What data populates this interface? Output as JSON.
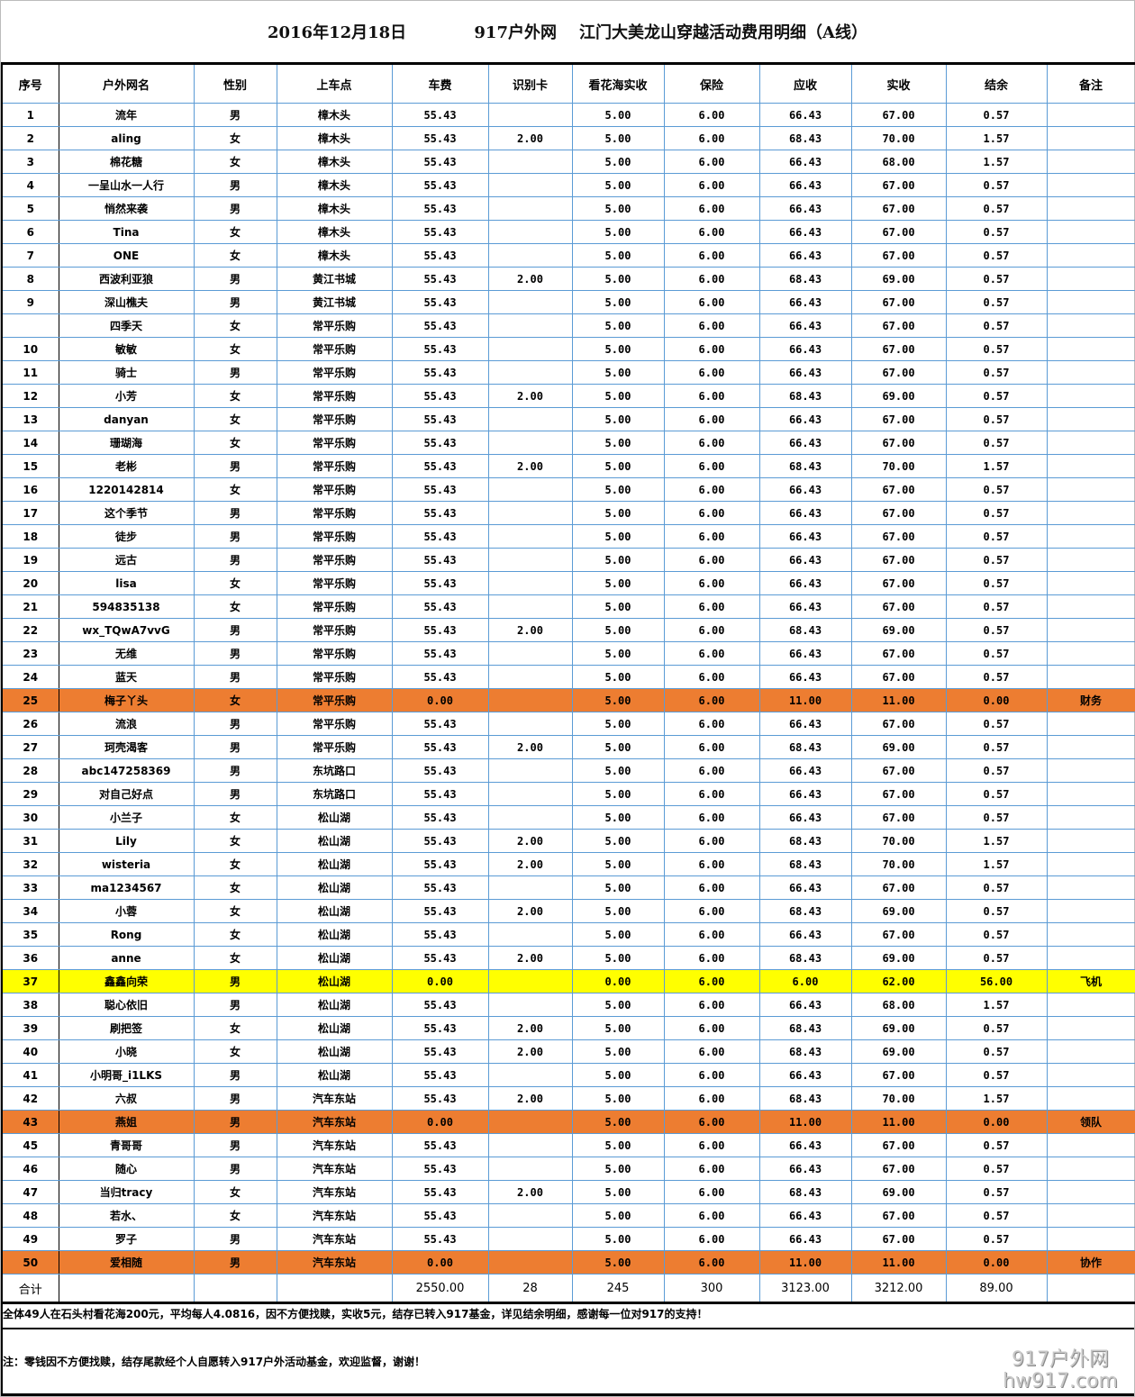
{
  "title": {
    "date": "2016年12月18日",
    "org": "917户外网",
    "event": "江门大美龙山穿越活动费用明细（A线）"
  },
  "headers": [
    "序号",
    "户外网名",
    "性别",
    "上车点",
    "车费",
    "识别卡",
    "看花海实收",
    "保险",
    "应收",
    "实收",
    "结余",
    "备注"
  ],
  "rows": [
    [
      "1",
      "流年",
      "男",
      "樟木头",
      "55.43",
      "",
      "5.00",
      "6.00",
      "66.43",
      "67.00",
      "0.57",
      ""
    ],
    [
      "2",
      "aling",
      "女",
      "樟木头",
      "55.43",
      "2.00",
      "5.00",
      "6.00",
      "68.43",
      "70.00",
      "1.57",
      ""
    ],
    [
      "3",
      "棉花糖",
      "女",
      "樟木头",
      "55.43",
      "",
      "5.00",
      "6.00",
      "66.43",
      "68.00",
      "1.57",
      ""
    ],
    [
      "4",
      "一呈山水一人行",
      "男",
      "樟木头",
      "55.43",
      "",
      "5.00",
      "6.00",
      "66.43",
      "67.00",
      "0.57",
      ""
    ],
    [
      "5",
      "悄然来袭",
      "男",
      "樟木头",
      "55.43",
      "",
      "5.00",
      "6.00",
      "66.43",
      "67.00",
      "0.57",
      ""
    ],
    [
      "6",
      "Tina",
      "女",
      "樟木头",
      "55.43",
      "",
      "5.00",
      "6.00",
      "66.43",
      "67.00",
      "0.57",
      ""
    ],
    [
      "7",
      "ONE",
      "女",
      "樟木头",
      "55.43",
      "",
      "5.00",
      "6.00",
      "66.43",
      "67.00",
      "0.57",
      ""
    ],
    [
      "8",
      "西波利亚狼",
      "男",
      "黄江书城",
      "55.43",
      "2.00",
      "5.00",
      "6.00",
      "68.43",
      "69.00",
      "0.57",
      ""
    ],
    [
      "9",
      "深山樵夫",
      "男",
      "黄江书城",
      "55.43",
      "",
      "5.00",
      "6.00",
      "66.43",
      "67.00",
      "0.57",
      ""
    ],
    [
      "",
      "四季天",
      "女",
      "常平乐购",
      "55.43",
      "",
      "5.00",
      "6.00",
      "66.43",
      "67.00",
      "0.57",
      ""
    ],
    [
      "10",
      "敏敏",
      "女",
      "常平乐购",
      "55.43",
      "",
      "5.00",
      "6.00",
      "66.43",
      "67.00",
      "0.57",
      ""
    ],
    [
      "11",
      "骑士",
      "男",
      "常平乐购",
      "55.43",
      "",
      "5.00",
      "6.00",
      "66.43",
      "67.00",
      "0.57",
      ""
    ],
    [
      "12",
      "小芳",
      "女",
      "常平乐购",
      "55.43",
      "2.00",
      "5.00",
      "6.00",
      "68.43",
      "69.00",
      "0.57",
      ""
    ],
    [
      "13",
      "danyan",
      "女",
      "常平乐购",
      "55.43",
      "",
      "5.00",
      "6.00",
      "66.43",
      "67.00",
      "0.57",
      ""
    ],
    [
      "14",
      "珊瑚海",
      "女",
      "常平乐购",
      "55.43",
      "",
      "5.00",
      "6.00",
      "66.43",
      "67.00",
      "0.57",
      ""
    ],
    [
      "15",
      "老彬",
      "男",
      "常平乐购",
      "55.43",
      "2.00",
      "5.00",
      "6.00",
      "68.43",
      "70.00",
      "1.57",
      ""
    ],
    [
      "16",
      "1220142814",
      "女",
      "常平乐购",
      "55.43",
      "",
      "5.00",
      "6.00",
      "66.43",
      "67.00",
      "0.57",
      ""
    ],
    [
      "17",
      "这个季节",
      "男",
      "常平乐购",
      "55.43",
      "",
      "5.00",
      "6.00",
      "66.43",
      "67.00",
      "0.57",
      ""
    ],
    [
      "18",
      "徒步",
      "男",
      "常平乐购",
      "55.43",
      "",
      "5.00",
      "6.00",
      "66.43",
      "67.00",
      "0.57",
      ""
    ],
    [
      "19",
      "远古",
      "男",
      "常平乐购",
      "55.43",
      "",
      "5.00",
      "6.00",
      "66.43",
      "67.00",
      "0.57",
      ""
    ],
    [
      "20",
      "lisa",
      "女",
      "常平乐购",
      "55.43",
      "",
      "5.00",
      "6.00",
      "66.43",
      "67.00",
      "0.57",
      ""
    ],
    [
      "21",
      "594835138",
      "女",
      "常平乐购",
      "55.43",
      "",
      "5.00",
      "6.00",
      "66.43",
      "67.00",
      "0.57",
      ""
    ],
    [
      "22",
      "wx_TQwA7vvG",
      "男",
      "常平乐购",
      "55.43",
      "2.00",
      "5.00",
      "6.00",
      "68.43",
      "69.00",
      "0.57",
      ""
    ],
    [
      "23",
      "无维",
      "男",
      "常平乐购",
      "55.43",
      "",
      "5.00",
      "6.00",
      "66.43",
      "67.00",
      "0.57",
      ""
    ],
    [
      "24",
      "蓝天",
      "男",
      "常平乐购",
      "55.43",
      "",
      "5.00",
      "6.00",
      "66.43",
      "67.00",
      "0.57",
      ""
    ],
    [
      "25",
      "梅子丫头",
      "女",
      "常平乐购",
      "0.00",
      "",
      "5.00",
      "6.00",
      "11.00",
      "11.00",
      "0.00",
      "财务",
      "orange"
    ],
    [
      "26",
      "流浪",
      "男",
      "常平乐购",
      "55.43",
      "",
      "5.00",
      "6.00",
      "66.43",
      "67.00",
      "0.57",
      ""
    ],
    [
      "27",
      "珂壳渴客",
      "男",
      "常平乐购",
      "55.43",
      "2.00",
      "5.00",
      "6.00",
      "68.43",
      "69.00",
      "0.57",
      ""
    ],
    [
      "28",
      "abc147258369",
      "男",
      "东坑路口",
      "55.43",
      "",
      "5.00",
      "6.00",
      "66.43",
      "67.00",
      "0.57",
      ""
    ],
    [
      "29",
      "对自己好点",
      "男",
      "东坑路口",
      "55.43",
      "",
      "5.00",
      "6.00",
      "66.43",
      "67.00",
      "0.57",
      ""
    ],
    [
      "30",
      "小兰子",
      "女",
      "松山湖",
      "55.43",
      "",
      "5.00",
      "6.00",
      "66.43",
      "67.00",
      "0.57",
      ""
    ],
    [
      "31",
      "Lily",
      "女",
      "松山湖",
      "55.43",
      "2.00",
      "5.00",
      "6.00",
      "68.43",
      "70.00",
      "1.57",
      ""
    ],
    [
      "32",
      "wisteria",
      "女",
      "松山湖",
      "55.43",
      "2.00",
      "5.00",
      "6.00",
      "68.43",
      "70.00",
      "1.57",
      ""
    ],
    [
      "33",
      "ma1234567",
      "女",
      "松山湖",
      "55.43",
      "",
      "5.00",
      "6.00",
      "66.43",
      "67.00",
      "0.57",
      ""
    ],
    [
      "34",
      "小蓉",
      "女",
      "松山湖",
      "55.43",
      "2.00",
      "5.00",
      "6.00",
      "68.43",
      "69.00",
      "0.57",
      ""
    ],
    [
      "35",
      "Rong",
      "女",
      "松山湖",
      "55.43",
      "",
      "5.00",
      "6.00",
      "66.43",
      "67.00",
      "0.57",
      ""
    ],
    [
      "36",
      "anne",
      "女",
      "松山湖",
      "55.43",
      "2.00",
      "5.00",
      "6.00",
      "68.43",
      "69.00",
      "0.57",
      ""
    ],
    [
      "37",
      "鑫鑫向荣",
      "男",
      "松山湖",
      "0.00",
      "",
      "0.00",
      "6.00",
      "6.00",
      "62.00",
      "56.00",
      "飞机",
      "yellow"
    ],
    [
      "38",
      "聪心依旧",
      "男",
      "松山湖",
      "55.43",
      "",
      "5.00",
      "6.00",
      "66.43",
      "68.00",
      "1.57",
      ""
    ],
    [
      "39",
      "刷把签",
      "女",
      "松山湖",
      "55.43",
      "2.00",
      "5.00",
      "6.00",
      "68.43",
      "69.00",
      "0.57",
      ""
    ],
    [
      "40",
      "小晓",
      "女",
      "松山湖",
      "55.43",
      "2.00",
      "5.00",
      "6.00",
      "68.43",
      "69.00",
      "0.57",
      ""
    ],
    [
      "41",
      "小明哥_i1LKS",
      "男",
      "松山湖",
      "55.43",
      "",
      "5.00",
      "6.00",
      "66.43",
      "67.00",
      "0.57",
      ""
    ],
    [
      "42",
      "六叔",
      "男",
      "汽车东站",
      "55.43",
      "2.00",
      "5.00",
      "6.00",
      "68.43",
      "70.00",
      "1.57",
      ""
    ],
    [
      "43",
      "燕姐",
      "男",
      "汽车东站",
      "0.00",
      "",
      "5.00",
      "6.00",
      "11.00",
      "11.00",
      "0.00",
      "领队",
      "orange"
    ],
    [
      "45",
      "青哥哥",
      "男",
      "汽车东站",
      "55.43",
      "",
      "5.00",
      "6.00",
      "66.43",
      "67.00",
      "0.57",
      ""
    ],
    [
      "46",
      "随心",
      "男",
      "汽车东站",
      "55.43",
      "",
      "5.00",
      "6.00",
      "66.43",
      "67.00",
      "0.57",
      ""
    ],
    [
      "47",
      "当归tracy",
      "女",
      "汽车东站",
      "55.43",
      "2.00",
      "5.00",
      "6.00",
      "68.43",
      "69.00",
      "0.57",
      ""
    ],
    [
      "48",
      "若水、",
      "女",
      "汽车东站",
      "55.43",
      "",
      "5.00",
      "6.00",
      "66.43",
      "67.00",
      "0.57",
      ""
    ],
    [
      "49",
      "罗子",
      "男",
      "汽车东站",
      "55.43",
      "",
      "5.00",
      "6.00",
      "66.43",
      "67.00",
      "0.57",
      ""
    ],
    [
      "50",
      "爱相随",
      "男",
      "汽车东站",
      "0.00",
      "",
      "5.00",
      "6.00",
      "11.00",
      "11.00",
      "0.00",
      "协作",
      "orange"
    ]
  ],
  "total": [
    "合计",
    "",
    "",
    "",
    "2550.00",
    "28",
    "245",
    "300",
    "3123.00",
    "3212.00",
    "89.00",
    ""
  ],
  "note1": "全体49人在石头村看花海200元，平均每人4.0816，因不方便找赎，实收5元，结存已转入917基金，详见结余明细，感谢每一位对917的支持！",
  "note2": "注：零钱因不方便找赎，结存尾款经个人自愿转入917户外活动基金，欢迎监督，谢谢！",
  "watermark": {
    "line1": "917户外网",
    "line2": "hw917.com"
  },
  "colors": {
    "orange": "#ed7d31",
    "yellow": "#ffff00",
    "grid": "#5b9bd5"
  }
}
